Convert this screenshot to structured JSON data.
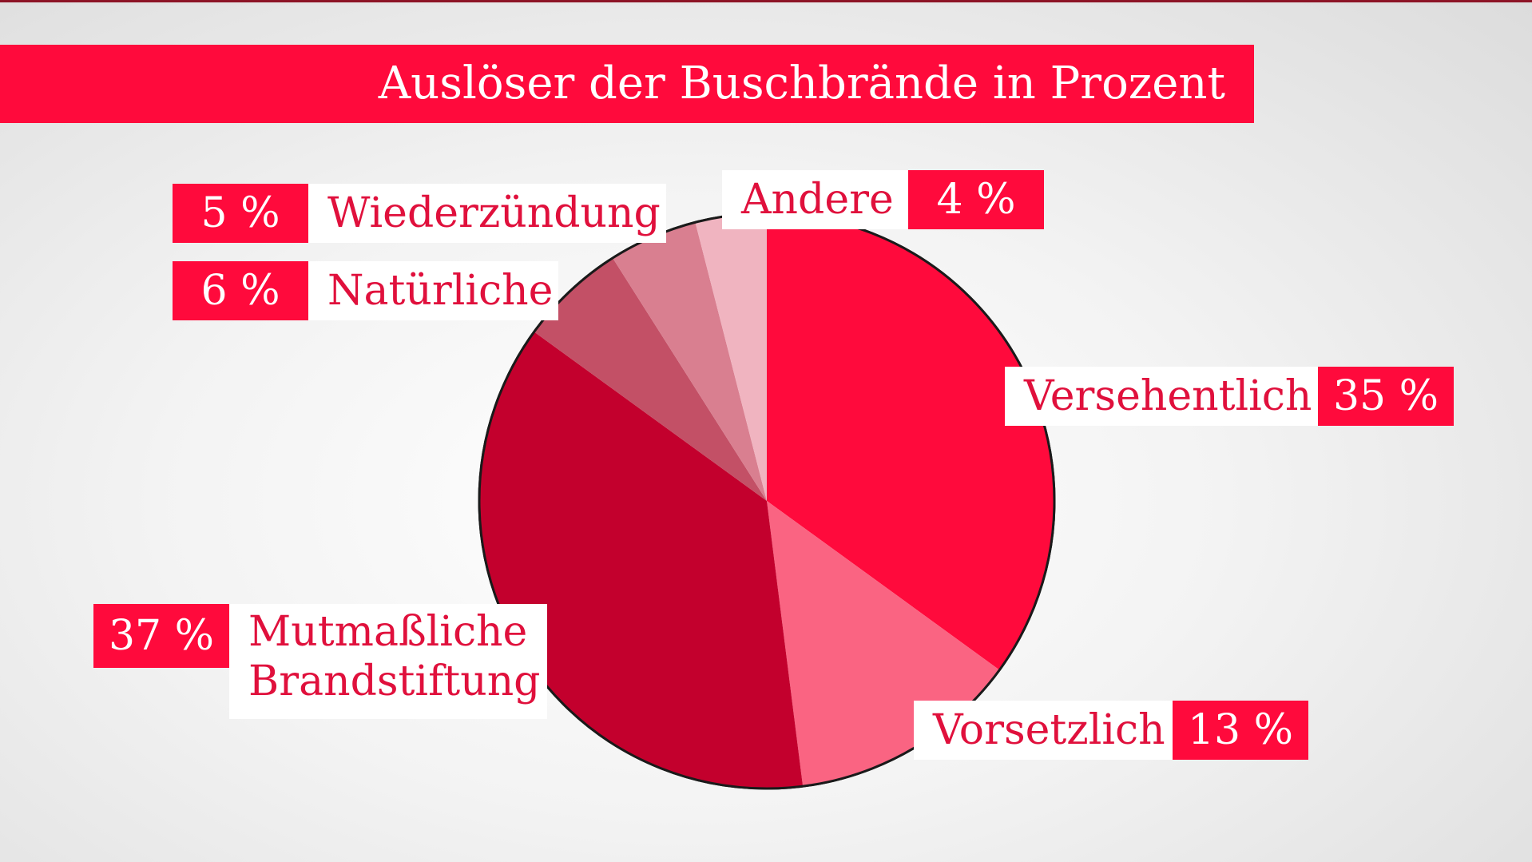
{
  "chart_data": {
    "type": "pie",
    "title": "Auslöser der Buschbrände in Prozent",
    "slices": [
      {
        "label": "Versehentlich",
        "value": 35,
        "value_label": "35 %",
        "color": "#ff0a3c"
      },
      {
        "label": "Vorsetzlich",
        "value": 13,
        "value_label": "13 %",
        "color": "#fa6482"
      },
      {
        "label": "Mutmaßliche Brandstiftung",
        "label_lines": [
          "Mutmaßliche",
          "Brandstiftung"
        ],
        "value": 37,
        "value_label": "37 %",
        "color": "#c3002d"
      },
      {
        "label": "Natürliche",
        "value": 6,
        "value_label": "6 %",
        "color": "#c35066"
      },
      {
        "label": "Wiederzündung",
        "value": 5,
        "value_label": "5 %",
        "color": "#d97f90"
      },
      {
        "label": "Andere",
        "value": 4,
        "value_label": "4 %",
        "color": "#f0b4c0"
      }
    ],
    "start_angle": "12 o'clock",
    "direction": "clockwise",
    "legend": "none"
  },
  "colors": {
    "accent": "#ff0a3c",
    "label_text": "#e0103c",
    "top_rule": "#8d1426"
  }
}
